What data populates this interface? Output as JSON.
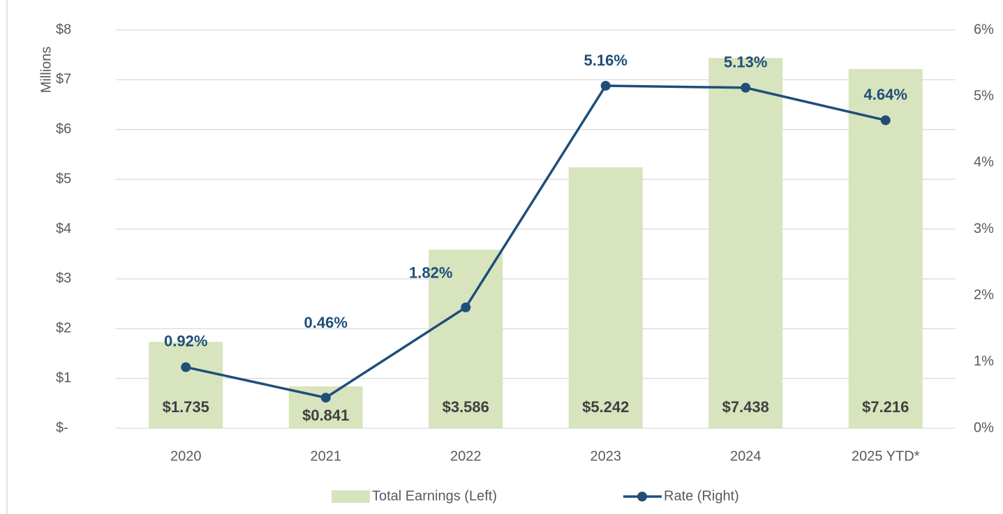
{
  "chart_data": {
    "type": "bar",
    "y_label": "Millions",
    "categories": [
      "2020",
      "2021",
      "2022",
      "2023",
      "2024",
      "2025 YTD*"
    ],
    "series": [
      {
        "name": "Total Earnings (Left)",
        "type": "bar",
        "color": "#d7e4bd",
        "values": [
          1.735,
          0.841,
          3.586,
          5.242,
          7.438,
          7.216
        ],
        "value_labels": [
          "$1.735",
          "$0.841",
          "$3.586",
          "$5.242",
          "$7.438",
          "$7.216"
        ]
      },
      {
        "name": "Rate (Right)",
        "type": "line",
        "axis": "y2",
        "color": "#1f4e79",
        "values": [
          0.92,
          0.46,
          1.82,
          5.16,
          5.13,
          4.64
        ],
        "value_labels": [
          "0.92%",
          "0.46%",
          "1.82%",
          "5.16%",
          "5.13%",
          "4.64%"
        ]
      }
    ],
    "ylim": [
      0,
      8
    ],
    "yticks": [
      {
        "value": 0,
        "label": "$-"
      },
      {
        "value": 1,
        "label": "$1"
      },
      {
        "value": 2,
        "label": "$2"
      },
      {
        "value": 3,
        "label": "$3"
      },
      {
        "value": 4,
        "label": "$4"
      },
      {
        "value": 5,
        "label": "$5"
      },
      {
        "value": 6,
        "label": "$6"
      },
      {
        "value": 7,
        "label": "$7"
      },
      {
        "value": 8,
        "label": "$8"
      }
    ],
    "y2lim": [
      0,
      6
    ],
    "y2ticks": [
      {
        "value": 0,
        "label": "0%"
      },
      {
        "value": 1,
        "label": "1%"
      },
      {
        "value": 2,
        "label": "2%"
      },
      {
        "value": 3,
        "label": "3%"
      },
      {
        "value": 4,
        "label": "4%"
      },
      {
        "value": 5,
        "label": "5%"
      },
      {
        "value": 6,
        "label": "6%"
      }
    ],
    "grid": true,
    "legend": "bottom"
  }
}
